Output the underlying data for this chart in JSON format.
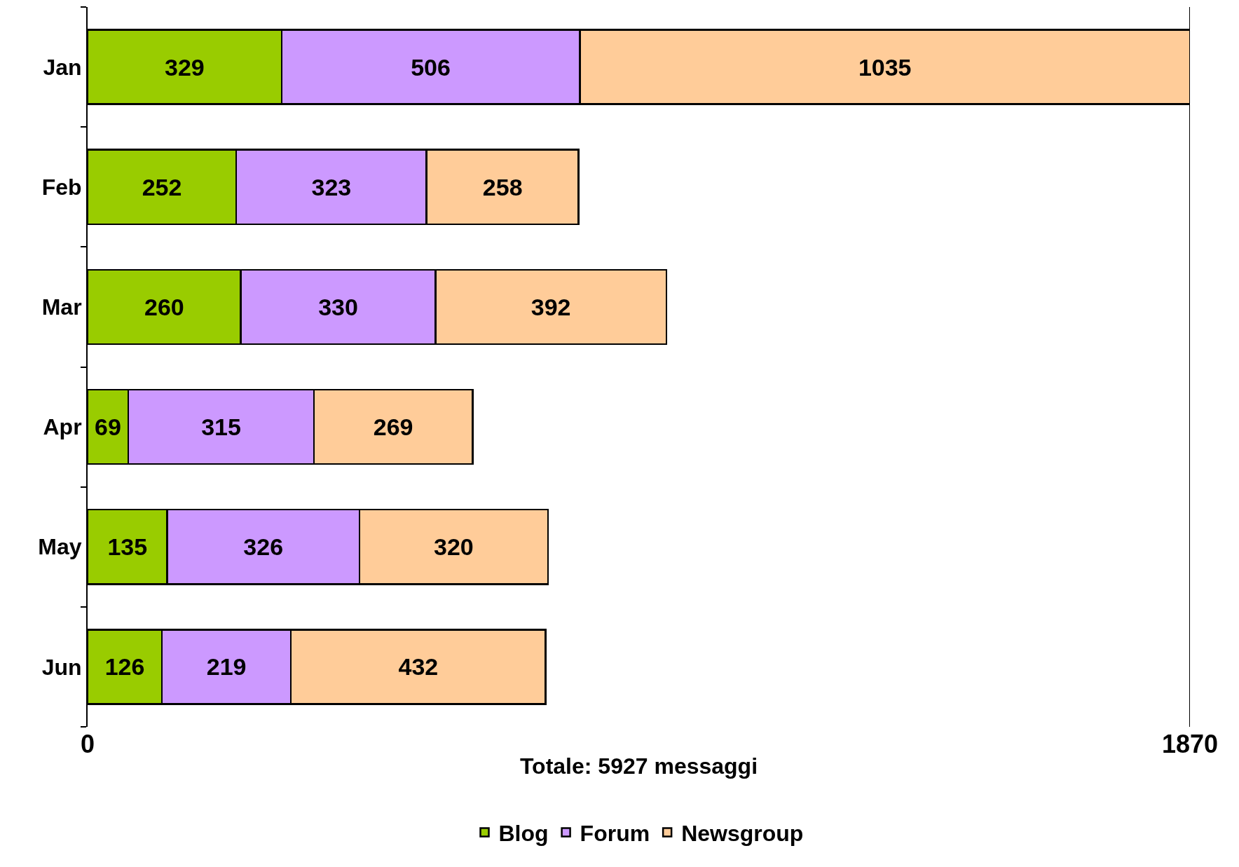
{
  "chart_data": {
    "type": "bar",
    "orientation": "horizontal",
    "stacked": true,
    "xlabel": "Totale: 5927 messaggi",
    "categories": [
      "Jan",
      "Feb",
      "Mar",
      "Apr",
      "May",
      "Jun"
    ],
    "series": [
      {
        "name": "Blog",
        "color": "#99cc00",
        "values": [
          329,
          252,
          260,
          69,
          135,
          126
        ]
      },
      {
        "name": "Forum",
        "color": "#cc99ff",
        "values": [
          506,
          323,
          330,
          315,
          326,
          219
        ]
      },
      {
        "name": "Newsgroup",
        "color": "#ffcc99",
        "values": [
          1035,
          258,
          392,
          269,
          320,
          432
        ]
      }
    ],
    "xlim": [
      0,
      1870
    ],
    "xticks": [
      0,
      1870
    ],
    "ref_lines": [
      {
        "axis": "x",
        "value": 1870
      }
    ],
    "legend": "bottom",
    "data_labels": true
  }
}
